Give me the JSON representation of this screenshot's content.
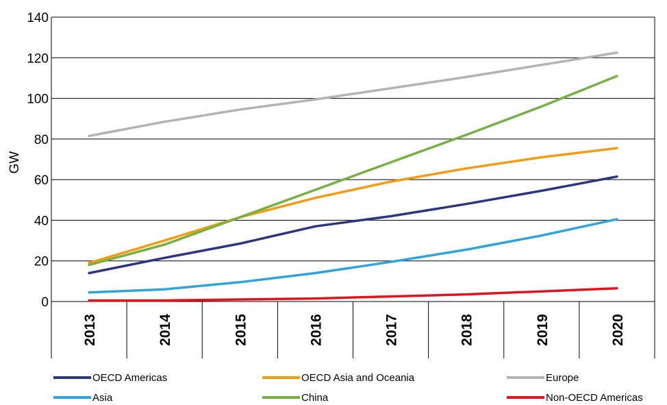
{
  "chart_data": {
    "type": "line",
    "title": "",
    "xlabel": "",
    "ylabel": "GW",
    "ylim": [
      0,
      140
    ],
    "yticks": [
      0,
      20,
      40,
      60,
      80,
      100,
      120,
      140
    ],
    "categories": [
      "2013",
      "2014",
      "2015",
      "2016",
      "2017",
      "2018",
      "2019",
      "2020"
    ],
    "grid": "horizontal",
    "legend_position": "bottom",
    "series": [
      {
        "name": "OECD Americas",
        "color": "#2b3580",
        "values": [
          14,
          21.5,
          28.5,
          37,
          42,
          48,
          54.5,
          61.5
        ]
      },
      {
        "name": "OECD Asia and Oceania",
        "color": "#f39c12",
        "values": [
          19,
          30,
          41.5,
          51,
          59,
          65.5,
          71,
          75.5
        ]
      },
      {
        "name": "Europe",
        "color": "#b3b3b3",
        "values": [
          81.5,
          88.5,
          94.5,
          99.5,
          105,
          110.5,
          116.5,
          122.5
        ]
      },
      {
        "name": "Asia",
        "color": "#2ea3dc",
        "values": [
          4.5,
          6,
          9.5,
          14,
          19.5,
          25.5,
          32.5,
          40.5
        ]
      },
      {
        "name": "China",
        "color": "#76b041",
        "values": [
          18,
          28,
          41.5,
          55,
          68.5,
          82,
          96,
          111
        ]
      },
      {
        "name": "Non-OECD Americas",
        "color": "#e3131e",
        "values": [
          0.5,
          0.5,
          1,
          1.5,
          2.5,
          3.5,
          5,
          6.5
        ]
      }
    ]
  }
}
